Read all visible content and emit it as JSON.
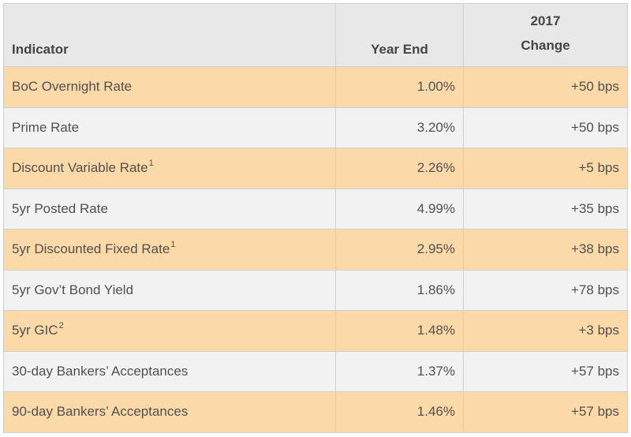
{
  "table": {
    "headers": {
      "indicator": "Indicator",
      "year_end": "Year End",
      "change_year": "2017",
      "change": "Change"
    },
    "rows": [
      {
        "name": "BoC Overnight Rate",
        "note": "",
        "year_end": "1.00%",
        "change": "+50 bps"
      },
      {
        "name": "Prime Rate",
        "note": "",
        "year_end": "3.20%",
        "change": "+50 bps"
      },
      {
        "name": "Discount Variable Rate",
        "note": "1",
        "year_end": "2.26%",
        "change": "+5 bps"
      },
      {
        "name": "5yr Posted Rate",
        "note": "",
        "year_end": "4.99%",
        "change": "+35 bps"
      },
      {
        "name": "5yr Discounted Fixed Rate",
        "note": "1",
        "year_end": "2.95%",
        "change": "+38 bps"
      },
      {
        "name": "5yr Gov’t Bond Yield",
        "note": "",
        "year_end": "1.86%",
        "change": "+78 bps"
      },
      {
        "name": "5yr GIC",
        "note": "2",
        "year_end": "1.48%",
        "change": "+3 bps"
      },
      {
        "name": "30-day Bankers’ Acceptances",
        "note": "",
        "year_end": "1.37%",
        "change": "+57 bps"
      },
      {
        "name": "90-day Bankers’ Acceptances",
        "note": "",
        "year_end": "1.46%",
        "change": "+57 bps"
      }
    ]
  },
  "colors": {
    "header_bg": "#e8e8e8",
    "row_odd_bg": "#fcd9a8",
    "row_even_bg": "#f2f2f2",
    "border": "#cfcfcf",
    "text": "#505050"
  }
}
